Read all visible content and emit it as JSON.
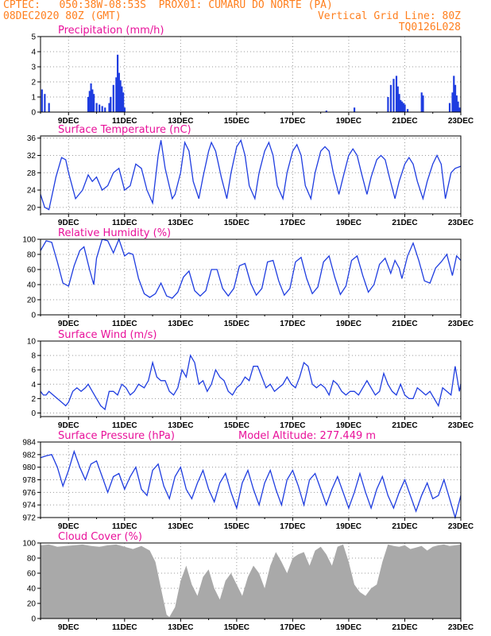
{
  "header": {
    "line1_left": "CPTEC:   050:38W-08:53S  PROX01: CUMARU DO NORTE (PA)",
    "line2_left": "08DEC2020 80Z (GMT)",
    "line2_right": "Vertical Grid Line: 80Z",
    "line3_right": "TQ0126L028"
  },
  "colors": {
    "header": "#ff7f1e",
    "title": "#e8119a",
    "series": "#1f3de0",
    "cloud": "#a9a9a9"
  },
  "chart_data": [
    {
      "type": "bar",
      "title": "Precipitation (mm/h)",
      "ylim": [
        0,
        5
      ],
      "yticks": [
        0,
        1,
        2,
        3,
        4,
        5
      ],
      "xlim": [
        8.0,
        23.0
      ],
      "xticks": [
        9,
        11,
        13,
        15,
        17,
        19,
        21,
        23
      ],
      "xtick_labels": [
        "9DEC",
        "11DEC",
        "13DEC",
        "15DEC",
        "17DEC",
        "19DEC",
        "21DEC",
        "23DEC"
      ],
      "x": [
        8.05,
        8.15,
        8.3,
        9.7,
        9.75,
        9.8,
        9.85,
        9.9,
        10.0,
        10.1,
        10.2,
        10.3,
        10.45,
        10.5,
        10.6,
        10.7,
        10.75,
        10.8,
        10.85,
        10.9,
        10.95,
        11.0,
        18.2,
        19.2,
        20.4,
        20.5,
        20.6,
        20.7,
        20.75,
        20.8,
        20.85,
        20.9,
        20.95,
        21.0,
        21.1,
        21.6,
        21.65,
        22.6,
        22.7,
        22.75,
        22.8,
        22.85,
        22.9,
        22.95
      ],
      "values": [
        1.5,
        1.2,
        0.6,
        1.0,
        1.4,
        1.9,
        1.5,
        1.2,
        0.6,
        0.5,
        0.4,
        0.3,
        0.6,
        1.0,
        1.8,
        2.3,
        3.8,
        2.6,
        2.1,
        1.7,
        1.3,
        0.3,
        0.1,
        0.3,
        1.0,
        1.8,
        2.2,
        2.4,
        1.7,
        1.2,
        0.8,
        0.7,
        0.6,
        0.5,
        0.2,
        1.3,
        1.1,
        0.6,
        1.3,
        2.4,
        1.8,
        1.1,
        0.7,
        0.3
      ]
    },
    {
      "type": "line",
      "title": "Surface Temperature (nC)",
      "ylim": [
        18.5,
        36.5
      ],
      "yticks": [
        20,
        24,
        28,
        32,
        36
      ],
      "xlim": [
        8.0,
        23.0
      ],
      "xticks": [
        9,
        11,
        13,
        15,
        17,
        19,
        21,
        23
      ],
      "xtick_labels": [
        "9DEC",
        "11DEC",
        "13DEC",
        "15DEC",
        "17DEC",
        "19DEC",
        "21DEC",
        "23DEC"
      ],
      "x": [
        8.0,
        8.15,
        8.3,
        8.45,
        8.55,
        8.75,
        8.9,
        9.0,
        9.25,
        9.5,
        9.7,
        9.85,
        10.0,
        10.2,
        10.4,
        10.6,
        10.8,
        11.0,
        11.2,
        11.4,
        11.6,
        11.8,
        12.0,
        12.2,
        12.3,
        12.45,
        12.7,
        12.8,
        13.0,
        13.15,
        13.3,
        13.45,
        13.65,
        13.8,
        14.0,
        14.1,
        14.25,
        14.45,
        14.65,
        14.8,
        15.0,
        15.15,
        15.3,
        15.45,
        15.65,
        15.8,
        16.0,
        16.15,
        16.3,
        16.45,
        16.65,
        16.8,
        17.0,
        17.15,
        17.3,
        17.45,
        17.65,
        17.8,
        18.0,
        18.15,
        18.3,
        18.45,
        18.65,
        18.8,
        19.0,
        19.15,
        19.3,
        19.45,
        19.65,
        19.8,
        20.0,
        20.15,
        20.3,
        20.45,
        20.65,
        20.8,
        21.0,
        21.15,
        21.3,
        21.45,
        21.65,
        21.8,
        22.0,
        22.15,
        22.3,
        22.45,
        22.65,
        22.8,
        23.0
      ],
      "values": [
        23,
        20,
        19.5,
        24,
        27,
        31.5,
        31,
        28,
        22,
        24,
        27.5,
        26,
        27,
        24,
        25,
        28,
        29,
        24,
        25,
        30,
        29,
        24,
        21,
        32,
        35.5,
        29,
        22,
        23,
        28,
        35,
        33,
        26,
        22,
        27,
        33,
        35,
        33,
        27,
        22,
        28,
        34,
        35.5,
        32,
        25,
        22,
        28,
        33,
        35,
        32,
        25,
        22,
        28,
        33,
        34.5,
        32,
        25,
        22,
        28,
        33,
        34,
        33,
        28,
        23,
        27,
        32,
        33.5,
        32,
        28,
        23,
        27,
        31,
        32,
        31,
        27,
        22,
        26,
        30,
        31.5,
        30,
        26,
        22,
        26,
        30,
        32,
        30,
        22,
        28,
        29,
        29.5
      ]
    },
    {
      "type": "line",
      "title": "Relative Humidity (%)",
      "ylim": [
        0,
        100
      ],
      "yticks": [
        0,
        20,
        40,
        60,
        80,
        100
      ],
      "xlim": [
        8.0,
        23.0
      ],
      "xticks": [
        9,
        11,
        13,
        15,
        17,
        19,
        21,
        23
      ],
      "xtick_labels": [
        "9DEC",
        "11DEC",
        "13DEC",
        "15DEC",
        "17DEC",
        "19DEC",
        "21DEC",
        "23DEC"
      ],
      "x": [
        8.0,
        8.2,
        8.4,
        8.6,
        8.8,
        9.0,
        9.2,
        9.4,
        9.55,
        9.75,
        9.9,
        10.0,
        10.2,
        10.4,
        10.6,
        10.8,
        11.0,
        11.15,
        11.3,
        11.5,
        11.7,
        11.9,
        12.1,
        12.3,
        12.5,
        12.7,
        12.9,
        13.1,
        13.3,
        13.5,
        13.7,
        13.9,
        14.1,
        14.3,
        14.5,
        14.7,
        14.9,
        15.1,
        15.3,
        15.5,
        15.7,
        15.9,
        16.1,
        16.3,
        16.5,
        16.7,
        16.9,
        17.1,
        17.3,
        17.5,
        17.7,
        17.9,
        18.1,
        18.3,
        18.5,
        18.7,
        18.9,
        19.1,
        19.3,
        19.5,
        19.7,
        19.9,
        20.1,
        20.3,
        20.5,
        20.65,
        20.8,
        20.9,
        21.1,
        21.3,
        21.5,
        21.7,
        21.9,
        22.1,
        22.3,
        22.5,
        22.7,
        22.85,
        23.0
      ],
      "values": [
        85,
        98,
        96,
        70,
        42,
        38,
        65,
        85,
        90,
        60,
        40,
        75,
        100,
        98,
        82,
        100,
        78,
        82,
        80,
        48,
        28,
        23,
        28,
        42,
        25,
        22,
        30,
        50,
        58,
        32,
        25,
        32,
        60,
        60,
        35,
        25,
        35,
        65,
        68,
        42,
        26,
        35,
        70,
        72,
        45,
        26,
        35,
        70,
        76,
        48,
        28,
        37,
        70,
        78,
        50,
        27,
        38,
        72,
        78,
        52,
        30,
        40,
        67,
        75,
        55,
        72,
        62,
        48,
        78,
        95,
        72,
        45,
        42,
        62,
        70,
        80,
        52,
        78,
        72
      ]
    },
    {
      "type": "line",
      "title": "Surface Wind (m/s)",
      "ylim": [
        -0.5,
        10
      ],
      "yticks": [
        0,
        2,
        4,
        6,
        8,
        10
      ],
      "xlim": [
        8.0,
        23.0
      ],
      "xticks": [
        9,
        11,
        13,
        15,
        17,
        19,
        21,
        23
      ],
      "xtick_labels": [
        "9DEC",
        "11DEC",
        "13DEC",
        "15DEC",
        "17DEC",
        "19DEC",
        "21DEC",
        "23DEC"
      ],
      "x": [
        8.0,
        8.1,
        8.2,
        8.3,
        8.45,
        8.6,
        8.75,
        8.9,
        9.0,
        9.15,
        9.3,
        9.45,
        9.6,
        9.7,
        9.85,
        10.0,
        10.15,
        10.3,
        10.45,
        10.6,
        10.75,
        10.9,
        11.05,
        11.2,
        11.35,
        11.5,
        11.7,
        11.85,
        12.0,
        12.15,
        12.3,
        12.45,
        12.6,
        12.75,
        12.9,
        13.05,
        13.2,
        13.35,
        13.5,
        13.65,
        13.8,
        13.95,
        14.1,
        14.25,
        14.4,
        14.55,
        14.7,
        14.85,
        15.0,
        15.15,
        15.3,
        15.45,
        15.6,
        15.75,
        15.9,
        16.05,
        16.2,
        16.35,
        16.5,
        16.65,
        16.8,
        16.95,
        17.1,
        17.25,
        17.4,
        17.55,
        17.7,
        17.85,
        18.0,
        18.15,
        18.3,
        18.45,
        18.6,
        18.75,
        18.9,
        19.05,
        19.2,
        19.35,
        19.5,
        19.65,
        19.8,
        19.95,
        20.1,
        20.25,
        20.4,
        20.55,
        20.7,
        20.85,
        21.0,
        21.15,
        21.3,
        21.45,
        21.6,
        21.75,
        21.9,
        22.05,
        22.2,
        22.35,
        22.5,
        22.65,
        22.8,
        22.95,
        23.0
      ],
      "values": [
        3,
        2.5,
        2.5,
        3,
        2.5,
        2,
        1.5,
        1,
        1.5,
        3,
        3.5,
        3,
        3.5,
        4,
        3,
        2,
        1,
        0.5,
        3,
        3,
        2.5,
        4,
        3.5,
        2.5,
        3,
        4,
        3.5,
        4.5,
        7,
        5,
        4.5,
        4.5,
        3,
        2.5,
        3.5,
        6,
        5,
        8,
        7,
        4,
        4.5,
        3,
        4,
        6,
        5,
        4.5,
        3,
        2.5,
        3.5,
        4,
        5,
        4.5,
        6.5,
        6.5,
        5,
        3.5,
        4,
        3,
        3.5,
        4,
        5,
        4,
        3.5,
        5,
        7,
        6.5,
        4,
        3.5,
        4,
        3.5,
        2.5,
        4.5,
        4,
        3,
        2.5,
        3,
        3,
        2.5,
        3.5,
        4.5,
        3.5,
        2.5,
        3,
        5.5,
        4,
        3,
        2.5,
        4,
        2.5,
        2,
        2,
        3.5,
        3,
        2.5,
        3,
        2,
        1,
        3.5,
        3,
        2.5,
        6.5,
        3,
        4
      ]
    },
    {
      "type": "line",
      "title": "Surface Pressure (hPa)",
      "annotation": "Model Altitude: 277.449  m",
      "ylim": [
        972,
        984
      ],
      "yticks": [
        972,
        974,
        976,
        978,
        980,
        982,
        984
      ],
      "xlim": [
        8.0,
        23.0
      ],
      "xticks": [
        9,
        11,
        13,
        15,
        17,
        19,
        21,
        23
      ],
      "xtick_labels": [
        "9DEC",
        "11DEC",
        "13DEC",
        "15DEC",
        "17DEC",
        "19DEC",
        "21DEC",
        "23DEC"
      ],
      "x": [
        8.0,
        8.2,
        8.4,
        8.6,
        8.8,
        9.0,
        9.2,
        9.4,
        9.6,
        9.8,
        10.0,
        10.2,
        10.4,
        10.6,
        10.8,
        11.0,
        11.2,
        11.4,
        11.6,
        11.8,
        12.0,
        12.2,
        12.4,
        12.6,
        12.8,
        13.0,
        13.2,
        13.4,
        13.6,
        13.8,
        14.0,
        14.2,
        14.4,
        14.6,
        14.8,
        15.0,
        15.2,
        15.4,
        15.6,
        15.8,
        16.0,
        16.2,
        16.4,
        16.6,
        16.8,
        17.0,
        17.2,
        17.4,
        17.6,
        17.8,
        18.0,
        18.2,
        18.4,
        18.6,
        18.8,
        19.0,
        19.2,
        19.4,
        19.6,
        19.8,
        20.0,
        20.2,
        20.4,
        20.6,
        20.8,
        21.0,
        21.2,
        21.4,
        21.6,
        21.8,
        22.0,
        22.2,
        22.4,
        22.6,
        22.8,
        23.0
      ],
      "values": [
        981.5,
        981.8,
        982,
        980,
        977,
        979.5,
        982.5,
        980,
        978,
        980.5,
        981,
        978.5,
        976,
        978.5,
        979,
        976.5,
        978.5,
        980,
        976.5,
        975.5,
        979.5,
        980.5,
        977,
        975,
        978.5,
        980,
        976.5,
        975,
        977.5,
        979.5,
        976.5,
        974.5,
        977.5,
        979,
        976,
        973.5,
        977.5,
        979.5,
        976.5,
        974,
        977.5,
        979.5,
        976.5,
        974,
        978,
        979.5,
        977,
        974,
        978,
        979,
        976.5,
        974,
        976.5,
        978.5,
        976,
        973.5,
        976,
        979,
        976,
        973.5,
        976.5,
        978.5,
        975.5,
        973.5,
        976,
        978,
        975.5,
        973,
        975.5,
        977.5,
        975,
        975.5,
        978,
        975,
        972,
        975.5
      ]
    },
    {
      "type": "area",
      "title": "Cloud Cover (%)",
      "ylim": [
        0,
        100
      ],
      "yticks": [
        0,
        20,
        40,
        60,
        80,
        100
      ],
      "xlim": [
        8.0,
        23.0
      ],
      "xticks": [
        9,
        11,
        13,
        15,
        17,
        19,
        21,
        23
      ],
      "xtick_labels": [
        "9DEC",
        "11DEC",
        "13DEC",
        "15DEC",
        "17DEC",
        "19DEC",
        "21DEC",
        "23DEC"
      ],
      "x": [
        8.0,
        8.3,
        8.6,
        8.9,
        9.2,
        9.5,
        9.8,
        10.1,
        10.4,
        10.7,
        11.0,
        11.3,
        11.6,
        11.9,
        12.1,
        12.3,
        12.5,
        12.6,
        12.8,
        13.0,
        13.2,
        13.4,
        13.6,
        13.8,
        14.0,
        14.2,
        14.4,
        14.6,
        14.8,
        15.0,
        15.2,
        15.4,
        15.6,
        15.8,
        16.0,
        16.2,
        16.4,
        16.6,
        16.8,
        17.0,
        17.2,
        17.4,
        17.6,
        17.8,
        18.0,
        18.2,
        18.4,
        18.6,
        18.8,
        19.0,
        19.2,
        19.4,
        19.6,
        19.8,
        20.0,
        20.2,
        20.4,
        20.6,
        20.8,
        21.0,
        21.2,
        21.4,
        21.6,
        21.8,
        22.0,
        22.2,
        22.4,
        22.6,
        22.8,
        23.0
      ],
      "values": [
        97,
        98,
        95,
        96,
        97,
        98,
        96,
        95,
        97,
        98,
        95,
        92,
        96,
        90,
        75,
        40,
        5,
        2,
        15,
        50,
        70,
        45,
        30,
        55,
        65,
        40,
        25,
        50,
        60,
        45,
        30,
        55,
        70,
        60,
        40,
        70,
        88,
        75,
        60,
        80,
        85,
        88,
        70,
        90,
        95,
        85,
        70,
        95,
        98,
        75,
        45,
        35,
        30,
        40,
        45,
        75,
        98,
        96,
        95,
        97,
        92,
        94,
        96,
        90,
        95,
        97,
        98,
        96,
        97,
        98
      ]
    }
  ]
}
